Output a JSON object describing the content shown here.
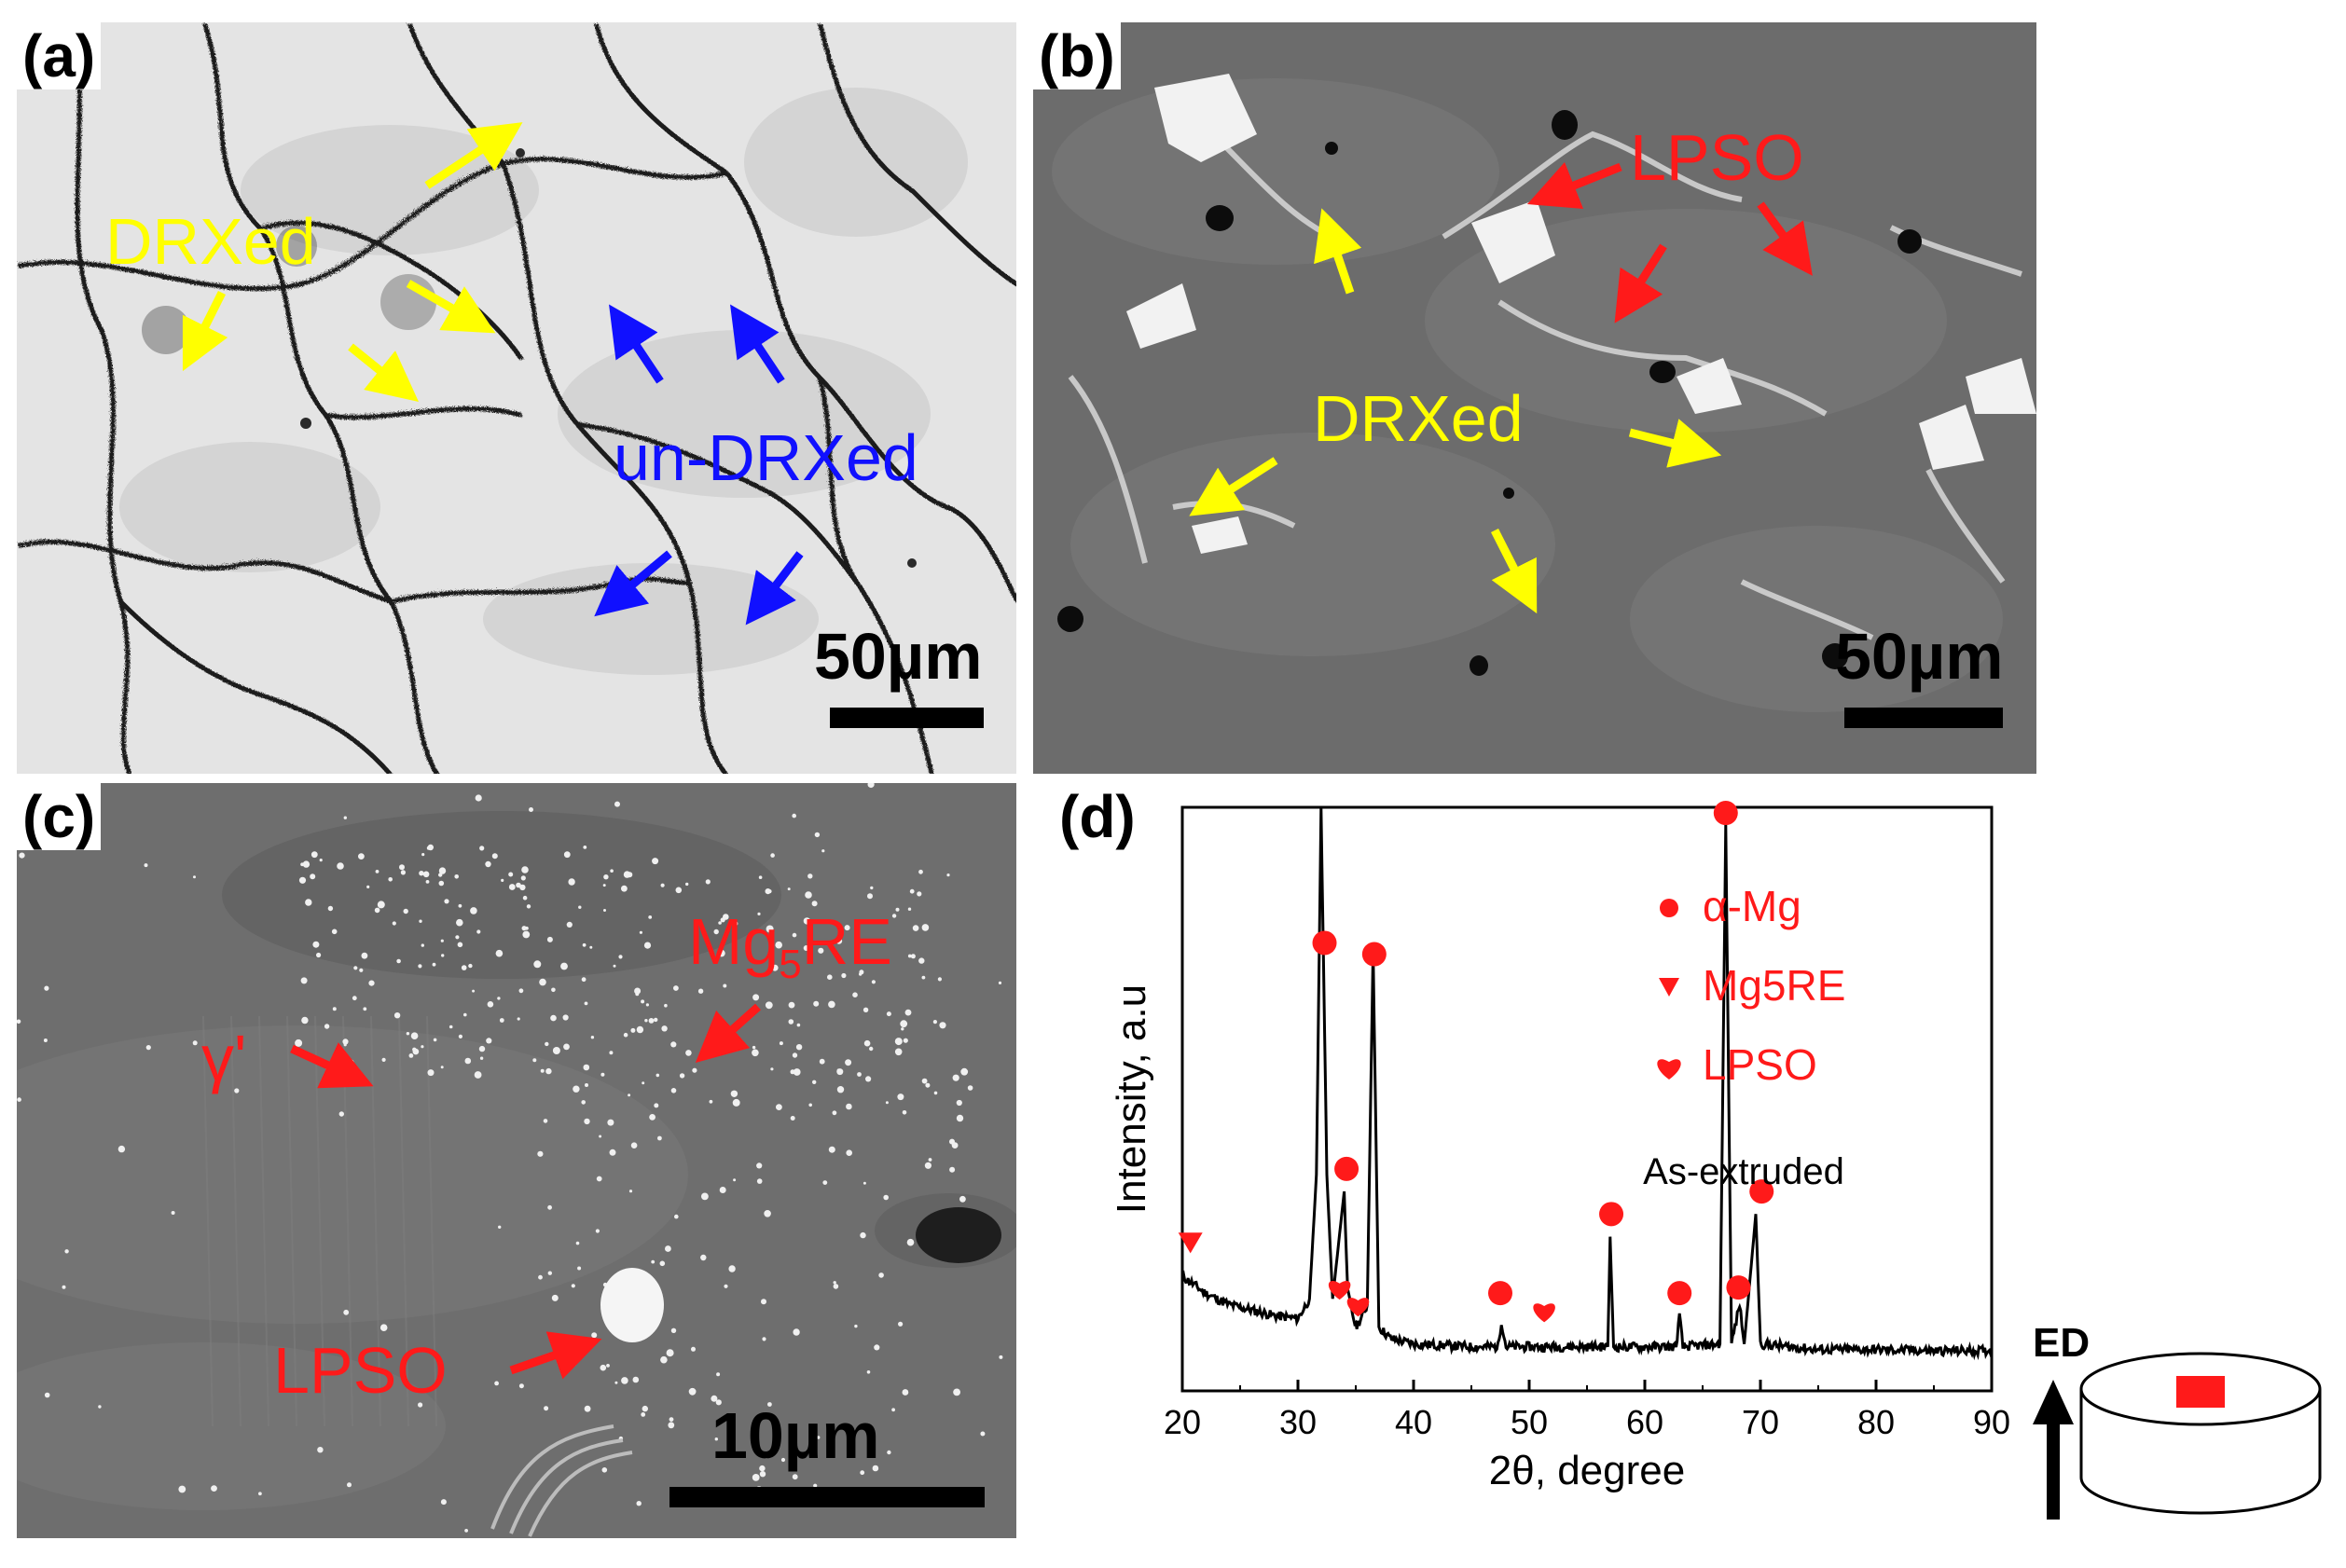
{
  "panel_a": {
    "label": "(a)",
    "drxed_label": "DRXed",
    "undrxed_label": "un-DRXed",
    "scale_text": "50µm",
    "colors": {
      "drxed": "#ffff00",
      "undrxed": "#1010ff",
      "background": "#e6e6e6"
    }
  },
  "panel_b": {
    "label": "(b)",
    "lpso_label": "LPSO",
    "drxed_label": "DRXed",
    "scale_text": "50µm",
    "colors": {
      "lpso": "#ff1a1a",
      "drxed": "#ffff00",
      "background": "#6e6e6e"
    }
  },
  "panel_c": {
    "label": "(c)",
    "mg5re_label": "Mg",
    "mg5re_sub": "5",
    "mg5re_suffix": "RE",
    "gamma_label": "γ'",
    "lpso_label": "LPSO",
    "scale_text": "10µm",
    "colors": {
      "annotation": "#ff1a1a",
      "background": "#707070"
    }
  },
  "panel_d": {
    "label": "(d)",
    "legend": [
      {
        "marker": "circle",
        "text": "α-Mg"
      },
      {
        "marker": "triangle",
        "text": "Mg5RE"
      },
      {
        "marker": "heart",
        "text": "LPSO"
      }
    ],
    "condition_label": "As-extruded",
    "inset_label": "ED",
    "marker_color": "#ff1a1a"
  },
  "chart_data": {
    "type": "line",
    "title": "",
    "xlabel": "2θ, degree",
    "ylabel": "Intensity, a.u",
    "xlim": [
      20,
      90
    ],
    "ylim": [
      0,
      100
    ],
    "xticks": [
      20,
      30,
      40,
      50,
      60,
      70,
      80,
      90
    ],
    "series": [
      {
        "values_xy": [
          [
            20,
            17
          ],
          [
            22,
            14
          ],
          [
            24,
            12
          ],
          [
            26,
            11
          ],
          [
            28,
            10
          ],
          [
            30,
            9.5
          ],
          [
            31,
            13
          ],
          [
            31.6,
            35
          ],
          [
            32,
            100
          ],
          [
            32.5,
            35
          ],
          [
            33,
            13
          ],
          [
            34,
            32
          ],
          [
            34.3,
            14
          ],
          [
            35,
            8
          ],
          [
            35.6,
            10
          ],
          [
            36,
            12
          ],
          [
            36.5,
            75
          ],
          [
            37,
            8
          ],
          [
            38,
            6
          ],
          [
            40,
            5
          ],
          [
            45,
            4.5
          ],
          [
            47.3,
            4.5
          ],
          [
            47.6,
            9
          ],
          [
            48,
            4.5
          ],
          [
            52,
            4.5
          ],
          [
            56.8,
            4.5
          ],
          [
            57,
            24
          ],
          [
            57.3,
            4.5
          ],
          [
            62.7,
            4.5
          ],
          [
            63,
            10
          ],
          [
            63.3,
            4.5
          ],
          [
            66.5,
            5
          ],
          [
            67,
            97
          ],
          [
            67.5,
            5
          ],
          [
            68.2,
            12
          ],
          [
            68.6,
            5
          ],
          [
            69.6,
            28
          ],
          [
            70,
            5
          ],
          [
            75,
            4
          ],
          [
            80,
            4
          ],
          [
            85,
            3.8
          ],
          [
            90,
            3.8
          ]
        ]
      }
    ],
    "markers": [
      {
        "phase": "α-Mg",
        "symbol": "circle",
        "x": 32.3,
        "y": 76
      },
      {
        "phase": "α-Mg",
        "symbol": "circle",
        "x": 36.6,
        "y": 74
      },
      {
        "phase": "α-Mg",
        "symbol": "circle",
        "x": 34.2,
        "y": 36
      },
      {
        "phase": "α-Mg",
        "symbol": "circle",
        "x": 47.5,
        "y": 14
      },
      {
        "phase": "α-Mg",
        "symbol": "circle",
        "x": 57.1,
        "y": 28
      },
      {
        "phase": "α-Mg",
        "symbol": "circle",
        "x": 63.0,
        "y": 14
      },
      {
        "phase": "α-Mg",
        "symbol": "circle",
        "x": 67.0,
        "y": 99
      },
      {
        "phase": "α-Mg",
        "symbol": "circle",
        "x": 68.1,
        "y": 15
      },
      {
        "phase": "α-Mg",
        "symbol": "circle",
        "x": 70.1,
        "y": 32
      },
      {
        "phase": "Mg5RE",
        "symbol": "triangle",
        "x": 20.7,
        "y": 23
      },
      {
        "phase": "LPSO",
        "symbol": "heart",
        "x": 33.6,
        "y": 15
      },
      {
        "phase": "LPSO",
        "symbol": "heart",
        "x": 35.2,
        "y": 12
      },
      {
        "phase": "LPSO",
        "symbol": "heart",
        "x": 51.3,
        "y": 11
      }
    ]
  }
}
